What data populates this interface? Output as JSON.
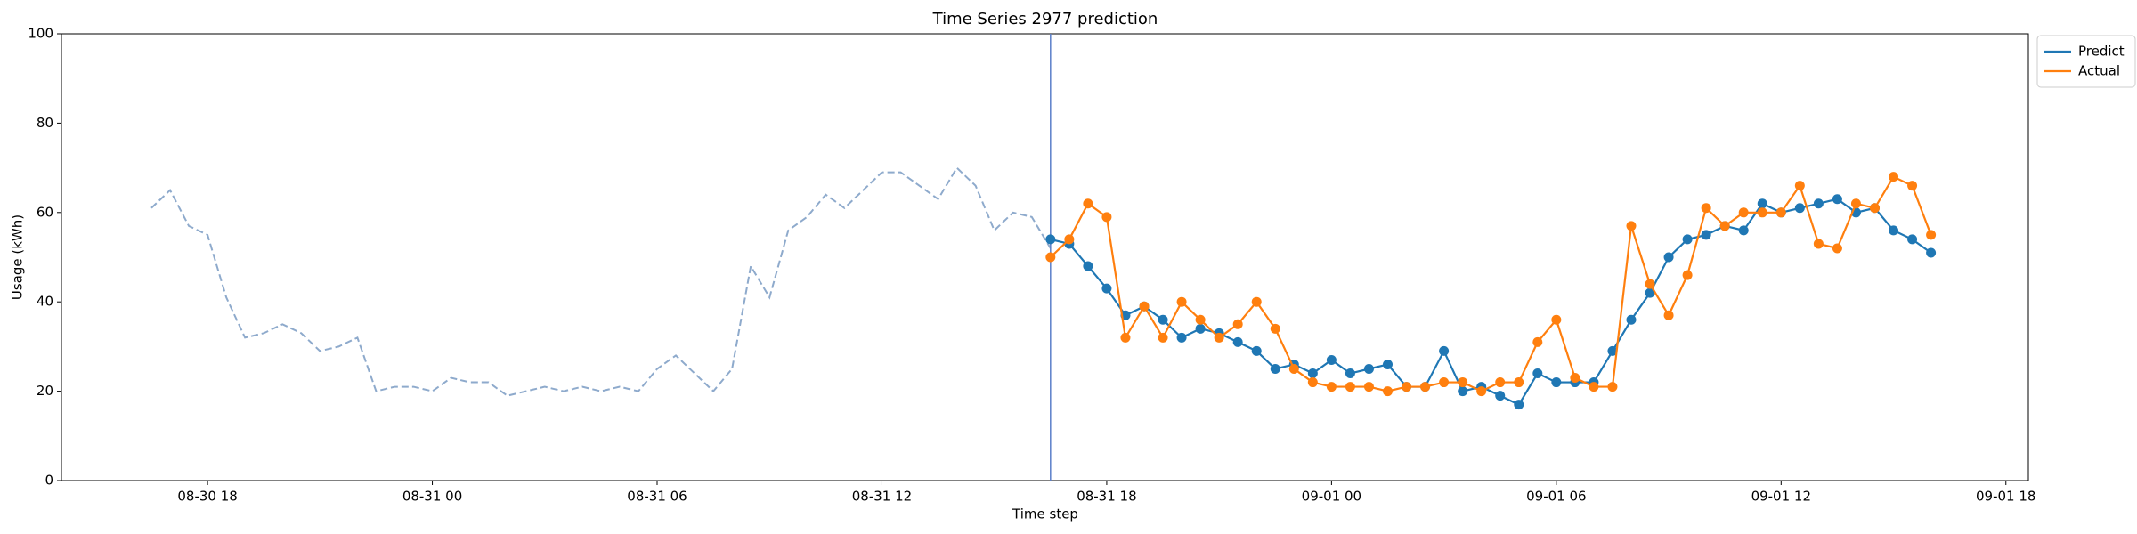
{
  "chart_data": {
    "type": "line",
    "title": "Time Series 2977 prediction",
    "x_label": "Time step",
    "y_label": "Usage (kWh)",
    "xlim": [
      14.1,
      66.6
    ],
    "ylim": [
      0,
      100
    ],
    "xticks": [
      {
        "value": 18,
        "label": "08-30 18"
      },
      {
        "value": 24,
        "label": "08-31 00"
      },
      {
        "value": 30,
        "label": "08-31 06"
      },
      {
        "value": 36,
        "label": "08-31 12"
      },
      {
        "value": 42,
        "label": "08-31 18"
      },
      {
        "value": 48,
        "label": "09-01 00"
      },
      {
        "value": 54,
        "label": "09-01 06"
      },
      {
        "value": 60,
        "label": "09-01 12"
      },
      {
        "value": 66,
        "label": "09-01 18"
      }
    ],
    "yticks": [
      0,
      20,
      40,
      60,
      80,
      100
    ],
    "grid": false,
    "legend": "upper right outside",
    "split_x": 40.5,
    "split_color": "#5b7fc9",
    "history": {
      "color": "#8eaacc",
      "x": [
        16.5,
        17,
        17.5,
        18,
        18.5,
        19,
        19.5,
        20,
        20.5,
        21,
        21.5,
        22,
        22.5,
        23,
        23.5,
        24,
        24.5,
        25,
        25.5,
        26,
        26.5,
        27,
        27.5,
        28,
        28.5,
        29,
        29.5,
        30,
        30.5,
        31,
        31.5,
        32,
        32.5,
        33,
        33.5,
        34,
        34.5,
        35,
        35.5,
        36,
        36.5,
        37,
        37.5,
        38,
        38.5,
        39,
        39.5,
        40,
        40.5
      ],
      "values": [
        61,
        65,
        57,
        55,
        41,
        32,
        33,
        35,
        33,
        29,
        30,
        32,
        20,
        21,
        21,
        20,
        23,
        22,
        22,
        19,
        20,
        21,
        20,
        21,
        20,
        21,
        20,
        25,
        28,
        24,
        20,
        25,
        48,
        41,
        56,
        59,
        64,
        61,
        65,
        69,
        69,
        66,
        63,
        70,
        66,
        56,
        60,
        59,
        52
      ]
    },
    "x": [
      40.5,
      41,
      41.5,
      42,
      42.5,
      43,
      43.5,
      44,
      44.5,
      45,
      45.5,
      46,
      46.5,
      47,
      47.5,
      48,
      48.5,
      49,
      49.5,
      50,
      50.5,
      51,
      51.5,
      52,
      52.5,
      53,
      53.5,
      54,
      54.5,
      55,
      55.5,
      56,
      56.5,
      57,
      57.5,
      58,
      58.5,
      59,
      59.5,
      60,
      60.5,
      61,
      61.5,
      62,
      62.5,
      63,
      63.5,
      64
    ],
    "series": [
      {
        "name": "Predict",
        "color": "#1f77b4",
        "values": [
          54,
          53,
          48,
          43,
          37,
          39,
          36,
          32,
          34,
          33,
          31,
          29,
          25,
          26,
          24,
          27,
          24,
          25,
          26,
          21,
          21,
          29,
          20,
          21,
          19,
          17,
          24,
          22,
          22,
          22,
          29,
          36,
          42,
          50,
          54,
          55,
          57,
          56,
          62,
          60,
          61,
          62,
          63,
          60,
          61,
          56,
          54,
          51
        ]
      },
      {
        "name": "Actual",
        "color": "#ff7f0e",
        "values": [
          50,
          54,
          62,
          59,
          32,
          39,
          32,
          40,
          36,
          32,
          35,
          40,
          34,
          25,
          22,
          21,
          21,
          21,
          20,
          21,
          21,
          22,
          22,
          20,
          22,
          22,
          31,
          36,
          23,
          21,
          21,
          57,
          44,
          37,
          46,
          61,
          57,
          60,
          60,
          60,
          66,
          53,
          52,
          62,
          61,
          68,
          66,
          55
        ]
      }
    ]
  }
}
